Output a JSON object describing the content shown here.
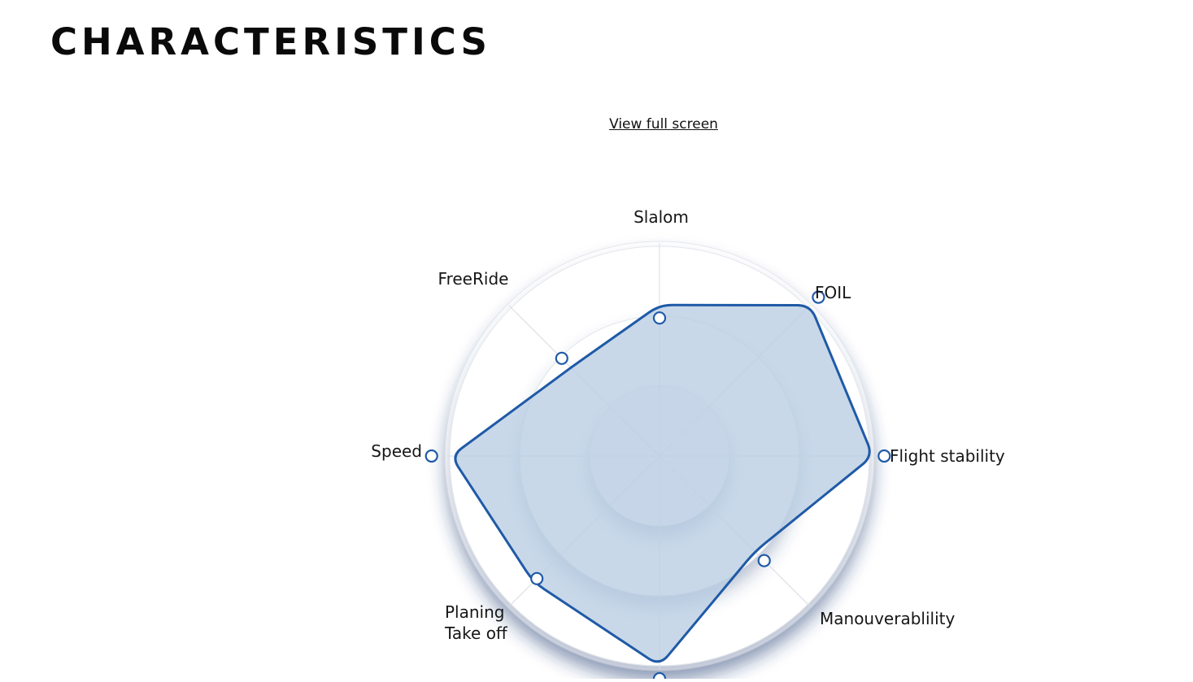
{
  "page": {
    "title": "CHARACTERISTICS",
    "fullscreen_link": "View full screen"
  },
  "colors": {
    "series_stroke": "#1f5aa6",
    "series_fill": "#b8cde3",
    "ring": "#f3f5f8"
  },
  "chart_data": {
    "type": "radar",
    "title": "",
    "axes": [
      {
        "label": [
          "Slalom"
        ]
      },
      {
        "label": [
          "FOIL"
        ]
      },
      {
        "label": [
          "Flight stability"
        ]
      },
      {
        "label": [
          "Manouverablility"
        ]
      },
      {
        "label": [
          "",
          ""
        ]
      },
      {
        "label": [
          "Planing",
          "Take off"
        ]
      },
      {
        "label": [
          "Speed"
        ]
      },
      {
        "label": [
          "FreeRide"
        ]
      }
    ],
    "ring_levels": [
      1,
      2,
      3
    ],
    "max_value": 3,
    "series": [
      {
        "values": [
          2.16,
          3.05,
          3.05,
          1.93,
          3.0,
          2.55,
          2.98,
          1.79
        ]
      }
    ]
  }
}
